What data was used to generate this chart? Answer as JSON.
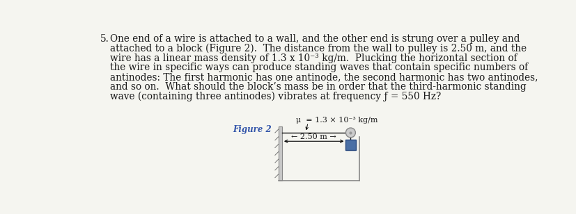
{
  "background_color": "#f5f5f0",
  "text_color": "#1a1a1a",
  "problem_number": "5.",
  "problem_text_lines": [
    "One end of a wire is attached to a wall, and the other end is strung over a pulley and",
    "attached to a block (Figure 2).  The distance from the wall to pulley is 2.50 m, and the",
    "wire has a linear mass density of 1.3 x 10⁻³ kg/m.  Plucking the horizontal section of",
    "the wire in specific ways can produce standing waves that contain specific numbers of",
    "antinodes: The first harmonic has one antinode, the second harmonic has two antinodes,",
    "and so on.  What should the block’s mass be in order that the third-harmonic standing",
    "wave (containing three antinodes) vibrates at frequency ƒ = 550 Hz?"
  ],
  "figure_label": "Figure 2",
  "figure_label_color": "#3355aa",
  "mu_label": "μ  = 1.3 × 10⁻³ kg/m",
  "distance_label": "←— 2.50 m —→",
  "wall_color": "#c8c8c8",
  "wire_color": "#111111",
  "pulley_fill": "#cccccc",
  "pulley_edge": "#888888",
  "block_color": "#4a6fa5",
  "block_edge": "#2a4a80",
  "box_line_color": "#888888",
  "font_size_problem": 9.8,
  "font_size_figure": 8.5,
  "font_size_mu": 8.0,
  "font_size_distance": 8.0
}
